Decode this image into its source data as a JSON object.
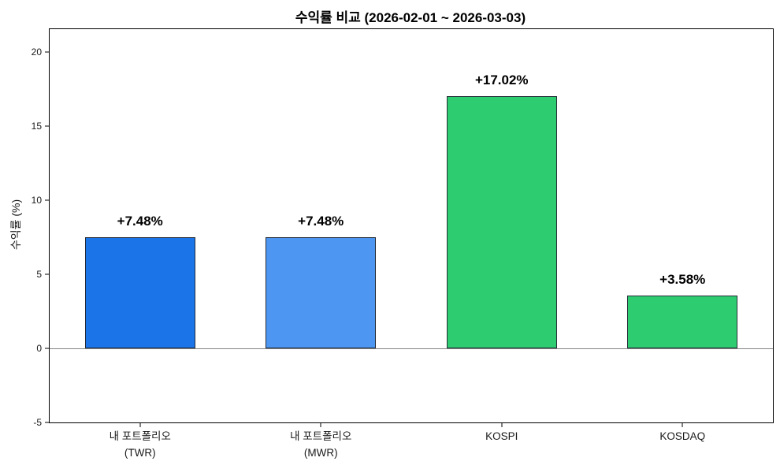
{
  "chart_data": {
    "type": "bar",
    "title": "수익률 비교 (2026-02-01 ~ 2026-03-03)",
    "ylabel": "수익률 (%)",
    "xlabel": "",
    "categories": [
      "내 포트폴리오\n(TWR)",
      "내 포트폴리오\n(MWR)",
      "KOSPI",
      "KOSDAQ"
    ],
    "values": [
      7.48,
      7.48,
      17.02,
      3.58
    ],
    "value_labels": [
      "+7.48%",
      "+7.48%",
      "+17.02%",
      "+3.58%"
    ],
    "bar_colors": [
      "#1b74e8",
      "#4d97f2",
      "#2ecc71",
      "#2ecc71"
    ],
    "bar_edge_color": "#232b36",
    "yticks": [
      -5,
      0,
      5,
      10,
      15,
      20
    ],
    "ylim": [
      -5,
      21.55
    ],
    "zero_line_value": 0,
    "zero_line_color": "#848484",
    "grid": false,
    "legend": null,
    "background_color": "#ffffff"
  }
}
